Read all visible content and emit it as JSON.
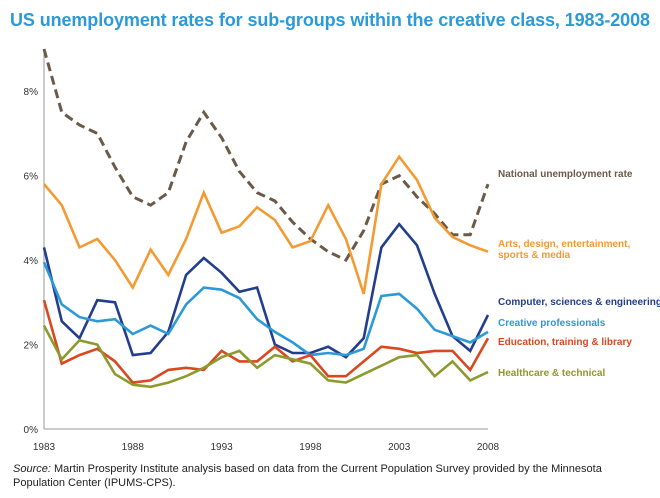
{
  "title": "US unemployment rates for sub-groups within the creative class, 1983-2008",
  "source": {
    "label": "Source:",
    "text": "Martin Prosperity Institute analysis based on data from the Current Population Survey provided by the Minnesota Population Center (IPUMS-CPS)."
  },
  "chart_data": {
    "type": "line",
    "title": "US unemployment rates for sub-groups within the creative class, 1983-2008",
    "xlabel": "",
    "ylabel": "",
    "xlim": [
      1983,
      2008
    ],
    "ylim": [
      0,
      9
    ],
    "x_ticks": [
      "1983",
      "1988",
      "1993",
      "1998",
      "2003",
      "2008"
    ],
    "x_tick_values": [
      1983,
      1988,
      1993,
      1998,
      2003,
      2008
    ],
    "y_ticks": [
      "0%",
      "2%",
      "4%",
      "6%",
      "8%"
    ],
    "y_tick_values": [
      0,
      2,
      4,
      6,
      8
    ],
    "grid": false,
    "legend": "direct labels at right",
    "x": [
      1983,
      1984,
      1985,
      1986,
      1987,
      1988,
      1989,
      1990,
      1991,
      1992,
      1993,
      1994,
      1995,
      1996,
      1997,
      1998,
      1999,
      2000,
      2001,
      2002,
      2003,
      2004,
      2005,
      2006,
      2007,
      2008
    ],
    "series": [
      {
        "name": "National unemployment rate",
        "color": "#6b5a48",
        "dashed": true,
        "values": [
          9.0,
          7.5,
          7.2,
          7.0,
          6.2,
          5.5,
          5.3,
          5.6,
          6.8,
          7.5,
          6.9,
          6.1,
          5.6,
          5.4,
          4.9,
          4.5,
          4.2,
          4.0,
          4.7,
          5.8,
          6.0,
          5.5,
          5.1,
          4.6,
          4.6,
          5.8
        ]
      },
      {
        "name": "Arts, design, entertainment, sports & media",
        "color": "#f49a32",
        "dashed": false,
        "values": [
          5.8,
          5.3,
          4.3,
          4.5,
          4.0,
          3.35,
          4.25,
          3.65,
          4.5,
          5.6,
          4.65,
          4.8,
          5.25,
          4.95,
          4.3,
          4.45,
          5.3,
          4.5,
          3.2,
          5.8,
          6.45,
          5.9,
          5.0,
          4.55,
          4.35,
          4.2
        ]
      },
      {
        "name": "Computer, sciences & engineering",
        "color": "#233e8c",
        "dashed": false,
        "values": [
          4.3,
          2.55,
          2.15,
          3.05,
          3.0,
          1.75,
          1.8,
          2.3,
          3.65,
          4.05,
          3.7,
          3.25,
          3.35,
          2.0,
          1.8,
          1.8,
          1.95,
          1.7,
          2.15,
          4.3,
          4.85,
          4.35,
          3.2,
          2.2,
          1.85,
          2.7
        ]
      },
      {
        "name": "Creative professionals",
        "color": "#2b9ad6",
        "dashed": false,
        "values": [
          3.95,
          2.95,
          2.65,
          2.55,
          2.6,
          2.25,
          2.45,
          2.25,
          2.95,
          3.35,
          3.3,
          3.1,
          2.6,
          2.3,
          2.05,
          1.75,
          1.8,
          1.75,
          1.9,
          3.15,
          3.2,
          2.85,
          2.35,
          2.2,
          2.05,
          2.3
        ]
      },
      {
        "name": "Education, training & library",
        "color": "#d9481f",
        "dashed": false,
        "values": [
          3.05,
          1.55,
          1.75,
          1.9,
          1.6,
          1.1,
          1.15,
          1.4,
          1.45,
          1.4,
          1.85,
          1.6,
          1.6,
          1.95,
          1.6,
          1.75,
          1.25,
          1.25,
          1.6,
          1.95,
          1.9,
          1.8,
          1.85,
          1.85,
          1.4,
          2.15
        ]
      },
      {
        "name": "Healthcare & technical",
        "color": "#8c9a2e",
        "dashed": false,
        "values": [
          2.45,
          1.65,
          2.1,
          2.0,
          1.3,
          1.05,
          1.0,
          1.1,
          1.25,
          1.45,
          1.7,
          1.85,
          1.45,
          1.75,
          1.65,
          1.55,
          1.15,
          1.1,
          1.3,
          1.5,
          1.7,
          1.75,
          1.25,
          1.6,
          1.15,
          1.35
        ]
      }
    ]
  }
}
